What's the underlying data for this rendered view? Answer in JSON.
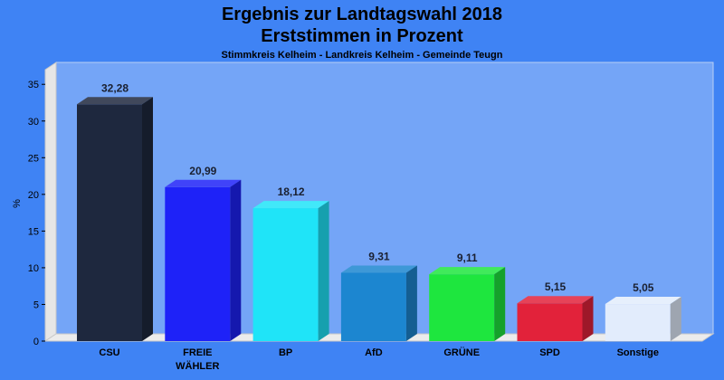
{
  "chart": {
    "title_line1": "Ergebnis zur Landtagswahl 2018",
    "title_line2": "Erststimmen in Prozent",
    "subtitle": "Stimmkreis Kelheim - Landkreis Kelheim - Gemeinde Teugn"
  },
  "chart_data": {
    "type": "bar",
    "title": "Ergebnis zur Landtagswahl 2018 Erststimmen in Prozent",
    "subtitle": "Stimmkreis Kelheim - Landkreis Kelheim - Gemeinde Teugn",
    "xlabel": "",
    "ylabel": "%",
    "ylim": [
      0,
      37
    ],
    "yticks": [
      0,
      5,
      10,
      15,
      20,
      25,
      30,
      35
    ],
    "grid": false,
    "categories": [
      "CSU",
      "FREIE WÄHLER",
      "BP",
      "AfD",
      "GRÜNE",
      "SPD",
      "Sonstige"
    ],
    "category_lines": [
      [
        "CSU"
      ],
      [
        "FREIE",
        "WÄHLER"
      ],
      [
        "BP"
      ],
      [
        "AfD"
      ],
      [
        "GRÜNE"
      ],
      [
        "SPD"
      ],
      [
        "Sonstige"
      ]
    ],
    "values": [
      32.28,
      20.99,
      18.12,
      9.31,
      9.11,
      5.15,
      5.05
    ],
    "value_labels": [
      "32,28",
      "20,99",
      "18,12",
      "9,31",
      "9,11",
      "5,15",
      "5,05"
    ],
    "colors": [
      "#1e283e",
      "#1e22f8",
      "#1fe4f8",
      "#1c86d0",
      "#1ee63e",
      "#e2223a",
      "#e2ecfc"
    ]
  }
}
